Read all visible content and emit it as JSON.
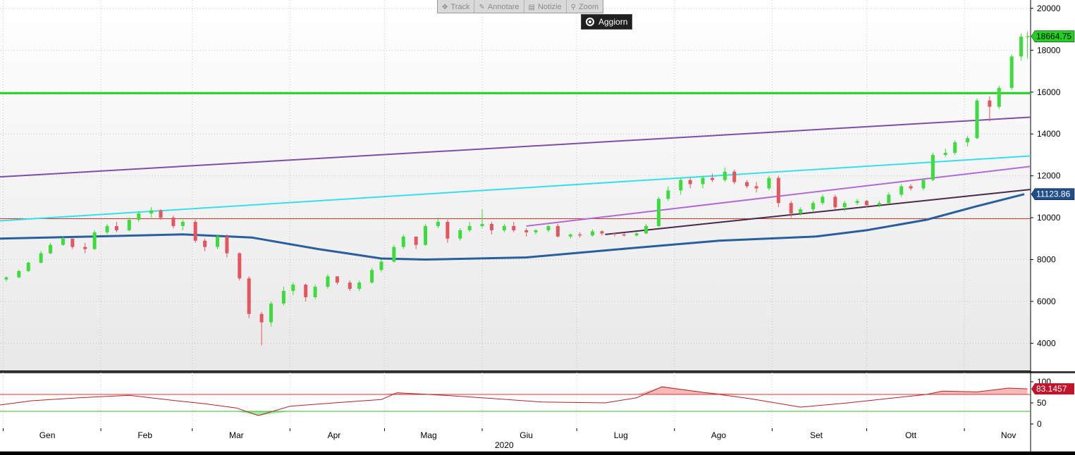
{
  "toolbar": {
    "items": [
      {
        "label": "Track",
        "icon": "crosshair-icon"
      },
      {
        "label": "Annotare",
        "icon": "pencil-icon"
      },
      {
        "label": "Notizie",
        "icon": "news-icon"
      },
      {
        "label": "Zoom",
        "icon": "magnifier-icon"
      }
    ],
    "refresh_label": "Aggiorn"
  },
  "chart_data": [
    {
      "type": "candlestick",
      "ylim": [
        2700,
        20400
      ],
      "yticks": [
        "4000",
        "6000",
        "8000",
        "10000",
        "12000",
        "14000",
        "16000",
        "18000",
        "20000"
      ],
      "last_price_label": "18664.75",
      "ma_label": "11123.86",
      "grid": true,
      "x_start": "2019-12-31",
      "x_end": "2020-11-22",
      "candles": [
        [
          "2020-01-02",
          7050,
          7200,
          6950,
          7150
        ],
        [
          "2020-01-06",
          7150,
          7500,
          7100,
          7450
        ],
        [
          "2020-01-09",
          7450,
          7900,
          7400,
          7850
        ],
        [
          "2020-01-13",
          7850,
          8400,
          7800,
          8300
        ],
        [
          "2020-01-16",
          8300,
          8800,
          8250,
          8700
        ],
        [
          "2020-01-20",
          8700,
          9100,
          8650,
          9000
        ],
        [
          "2020-01-23",
          9000,
          8950,
          8500,
          8600
        ],
        [
          "2020-01-27",
          8600,
          8800,
          8300,
          8500
        ],
        [
          "2020-01-30",
          8500,
          9400,
          8450,
          9300
        ],
        [
          "2020-02-03",
          9300,
          9700,
          9200,
          9600
        ],
        [
          "2020-02-06",
          9600,
          9800,
          9300,
          9400
        ],
        [
          "2020-02-10",
          9400,
          10000,
          9350,
          9900
        ],
        [
          "2020-02-13",
          9900,
          10300,
          9800,
          10200
        ],
        [
          "2020-02-17",
          10200,
          10500,
          10000,
          10350
        ],
        [
          "2020-02-20",
          10350,
          10400,
          9900,
          10000
        ],
        [
          "2020-02-24",
          10000,
          10100,
          9500,
          9600
        ],
        [
          "2020-02-27",
          9600,
          9900,
          9400,
          9800
        ],
        [
          "2020-03-02",
          9800,
          9900,
          8800,
          8900
        ],
        [
          "2020-03-05",
          8900,
          9000,
          8400,
          8600
        ],
        [
          "2020-03-09",
          8600,
          9200,
          8500,
          9100
        ],
        [
          "2020-03-12",
          9100,
          9200,
          8100,
          8300
        ],
        [
          "2020-03-16",
          8300,
          8350,
          7000,
          7100
        ],
        [
          "2020-03-19",
          7100,
          7200,
          5200,
          5400
        ],
        [
          "2020-03-23",
          5400,
          5500,
          3900,
          5000
        ],
        [
          "2020-03-26",
          5000,
          6000,
          4800,
          5900
        ],
        [
          "2020-03-30",
          5900,
          6700,
          5800,
          6500
        ],
        [
          "2020-04-02",
          6500,
          6900,
          6300,
          6800
        ],
        [
          "2020-04-06",
          6800,
          6850,
          6000,
          6200
        ],
        [
          "2020-04-09",
          6200,
          6800,
          6100,
          6700
        ],
        [
          "2020-04-13",
          6700,
          7300,
          6600,
          7200
        ],
        [
          "2020-04-16",
          7200,
          7100,
          6800,
          6900
        ],
        [
          "2020-04-20",
          6900,
          7000,
          6500,
          6600
        ],
        [
          "2020-04-23",
          6600,
          7000,
          6500,
          6900
        ],
        [
          "2020-04-27",
          6900,
          7600,
          6850,
          7500
        ],
        [
          "2020-04-30",
          7500,
          8000,
          7400,
          7900
        ],
        [
          "2020-05-04",
          7900,
          8700,
          7850,
          8600
        ],
        [
          "2020-05-07",
          8600,
          9200,
          8500,
          9100
        ],
        [
          "2020-05-11",
          9100,
          9000,
          8500,
          8700
        ],
        [
          "2020-05-14",
          8700,
          9700,
          8650,
          9600
        ],
        [
          "2020-05-18",
          9600,
          10000,
          9500,
          9800
        ],
        [
          "2020-05-21",
          9800,
          9900,
          8800,
          9000
        ],
        [
          "2020-05-25",
          9000,
          9500,
          8900,
          9400
        ],
        [
          "2020-05-28",
          9400,
          9800,
          9300,
          9600
        ],
        [
          "2020-06-01",
          9600,
          10400,
          9500,
          9700
        ],
        [
          "2020-06-04",
          9700,
          9800,
          9200,
          9400
        ],
        [
          "2020-06-08",
          9400,
          9700,
          9300,
          9600
        ],
        [
          "2020-06-11",
          9600,
          9800,
          9300,
          9400
        ],
        [
          "2020-06-15",
          9400,
          9500,
          9100,
          9300
        ],
        [
          "2020-06-18",
          9300,
          9450,
          9200,
          9400
        ],
        [
          "2020-06-22",
          9400,
          9650,
          9300,
          9600
        ],
        [
          "2020-06-25",
          9600,
          9700,
          9050,
          9100
        ],
        [
          "2020-06-29",
          9100,
          9250,
          9000,
          9200
        ],
        [
          "2020-07-02",
          9200,
          9300,
          9050,
          9150
        ],
        [
          "2020-07-06",
          9150,
          9450,
          9100,
          9350
        ],
        [
          "2020-07-09",
          9350,
          9400,
          9150,
          9250
        ],
        [
          "2020-07-13",
          9250,
          9300,
          9100,
          9200
        ],
        [
          "2020-07-16",
          9200,
          9250,
          9100,
          9150
        ],
        [
          "2020-07-20",
          9150,
          9300,
          9100,
          9250
        ],
        [
          "2020-07-23",
          9250,
          9700,
          9200,
          9600
        ],
        [
          "2020-07-27",
          9600,
          11000,
          9550,
          10900
        ],
        [
          "2020-07-30",
          10900,
          11500,
          10800,
          11300
        ],
        [
          "2020-08-03",
          11300,
          11900,
          11100,
          11800
        ],
        [
          "2020-08-06",
          11800,
          11900,
          11400,
          11600
        ],
        [
          "2020-08-10",
          11600,
          12000,
          11400,
          11900
        ],
        [
          "2020-08-13",
          11900,
          12100,
          11700,
          11800
        ],
        [
          "2020-08-17",
          11800,
          12400,
          11700,
          12200
        ],
        [
          "2020-08-20",
          12200,
          12300,
          11600,
          11700
        ],
        [
          "2020-08-24",
          11700,
          11800,
          11400,
          11500
        ],
        [
          "2020-08-27",
          11500,
          11700,
          11200,
          11400
        ],
        [
          "2020-08-31",
          11400,
          12000,
          11300,
          11900
        ],
        [
          "2020-09-03",
          11900,
          12000,
          10500,
          10700
        ],
        [
          "2020-09-07",
          10700,
          10800,
          10000,
          10200
        ],
        [
          "2020-09-10",
          10200,
          10500,
          10100,
          10400
        ],
        [
          "2020-09-14",
          10400,
          10800,
          10300,
          10700
        ],
        [
          "2020-09-17",
          10700,
          11100,
          10600,
          11000
        ],
        [
          "2020-09-21",
          11000,
          11100,
          10400,
          10500
        ],
        [
          "2020-09-24",
          10500,
          10800,
          10300,
          10700
        ],
        [
          "2020-09-28",
          10700,
          10900,
          10600,
          10800
        ],
        [
          "2020-10-01",
          10800,
          10850,
          10500,
          10600
        ],
        [
          "2020-10-05",
          10600,
          10800,
          10500,
          10700
        ],
        [
          "2020-10-08",
          10700,
          11200,
          10650,
          11100
        ],
        [
          "2020-10-12",
          11100,
          11600,
          11000,
          11500
        ],
        [
          "2020-10-15",
          11500,
          11600,
          11300,
          11400
        ],
        [
          "2020-10-19",
          11400,
          11900,
          11300,
          11800
        ],
        [
          "2020-10-22",
          11800,
          13100,
          11750,
          13000
        ],
        [
          "2020-10-26",
          13000,
          13300,
          12900,
          13100
        ],
        [
          "2020-10-29",
          13100,
          13700,
          13000,
          13600
        ],
        [
          "2020-11-02",
          13600,
          13900,
          13400,
          13800
        ],
        [
          "2020-11-05",
          13800,
          15700,
          13750,
          15600
        ],
        [
          "2020-11-09",
          15600,
          15800,
          14600,
          15300
        ],
        [
          "2020-11-12",
          15300,
          16300,
          15200,
          16200
        ],
        [
          "2020-11-16",
          16200,
          17800,
          16100,
          17700
        ],
        [
          "2020-11-19",
          17700,
          18800,
          17500,
          18650
        ],
        [
          "2020-11-21",
          18650,
          18900,
          17600,
          18664.75
        ]
      ],
      "moving_average": [
        [
          "2019-12-31",
          9000
        ],
        [
          "2020-01-30",
          9100
        ],
        [
          "2020-02-27",
          9200
        ],
        [
          "2020-03-20",
          9050
        ],
        [
          "2020-04-10",
          8500
        ],
        [
          "2020-04-30",
          8050
        ],
        [
          "2020-05-14",
          8000
        ],
        [
          "2020-06-15",
          8100
        ],
        [
          "2020-07-15",
          8500
        ],
        [
          "2020-08-15",
          8900
        ],
        [
          "2020-09-15",
          9100
        ],
        [
          "2020-10-01",
          9400
        ],
        [
          "2020-10-20",
          9900
        ],
        [
          "2020-11-05",
          10550
        ],
        [
          "2020-11-20",
          11123.86
        ]
      ],
      "reference_lines": [
        {
          "name": "green-horizontal",
          "y": 15950,
          "color": "#21d021"
        },
        {
          "name": "red-horizontal",
          "y": 9950,
          "color": "#c0392b"
        }
      ],
      "trend_lines": [
        {
          "name": "purple-upper",
          "from": [
            "2019-12-31",
            11950
          ],
          "to": [
            "2020-11-22",
            14800
          ],
          "color": "#7f4fa6"
        },
        {
          "name": "cyan",
          "from": [
            "2019-12-31",
            9850
          ],
          "to": [
            "2020-11-22",
            12950
          ],
          "color": "#35e0ea"
        },
        {
          "name": "magenta",
          "from": [
            "2020-06-15",
            9600
          ],
          "to": [
            "2020-11-22",
            12450
          ],
          "color": "#b36ad6"
        },
        {
          "name": "dark-purple",
          "from": [
            "2020-07-10",
            9200
          ],
          "to": [
            "2020-11-22",
            11350
          ],
          "color": "#4a2a4a"
        }
      ]
    },
    {
      "type": "line",
      "name": "rsi",
      "ylim": [
        -10,
        115
      ],
      "yticks": [
        "0",
        "50",
        "100"
      ],
      "overbought": 70,
      "oversold": 30,
      "last_value_label": "83.1457",
      "values": [
        [
          "2019-12-31",
          45
        ],
        [
          "2020-01-10",
          55
        ],
        [
          "2020-01-25",
          62
        ],
        [
          "2020-02-10",
          68
        ],
        [
          "2020-02-25",
          55
        ],
        [
          "2020-03-05",
          48
        ],
        [
          "2020-03-15",
          38
        ],
        [
          "2020-03-22",
          20
        ],
        [
          "2020-04-01",
          42
        ],
        [
          "2020-04-15",
          50
        ],
        [
          "2020-04-30",
          58
        ],
        [
          "2020-05-05",
          74
        ],
        [
          "2020-05-20",
          68
        ],
        [
          "2020-06-05",
          60
        ],
        [
          "2020-06-20",
          52
        ],
        [
          "2020-07-10",
          50
        ],
        [
          "2020-07-20",
          62
        ],
        [
          "2020-07-28",
          88
        ],
        [
          "2020-08-10",
          75
        ],
        [
          "2020-08-25",
          60
        ],
        [
          "2020-09-10",
          40
        ],
        [
          "2020-09-25",
          50
        ],
        [
          "2020-10-10",
          62
        ],
        [
          "2020-10-20",
          70
        ],
        [
          "2020-10-25",
          78
        ],
        [
          "2020-11-05",
          76
        ],
        [
          "2020-11-15",
          85
        ],
        [
          "2020-11-21",
          83.1457
        ]
      ]
    }
  ],
  "x_axis": {
    "months": [
      {
        "label": "Gen",
        "date": "2020-01-15"
      },
      {
        "label": "Feb",
        "date": "2020-02-15"
      },
      {
        "label": "Mar",
        "date": "2020-03-15"
      },
      {
        "label": "Apr",
        "date": "2020-04-15"
      },
      {
        "label": "Mag",
        "date": "2020-05-15"
      },
      {
        "label": "Giu",
        "date": "2020-06-15"
      },
      {
        "label": "Lug",
        "date": "2020-07-15"
      },
      {
        "label": "Ago",
        "date": "2020-08-15"
      },
      {
        "label": "Set",
        "date": "2020-09-15"
      },
      {
        "label": "Ott",
        "date": "2020-10-15"
      },
      {
        "label": "Nov",
        "date": "2020-11-15"
      }
    ],
    "year": "2020"
  },
  "colors": {
    "up": "#3ddc3d",
    "down": "#e3565f",
    "ma": "#2a5f9e",
    "rsi": "#b22222",
    "last_price_bg": "#21d021",
    "ma_label_bg": "#1f4e8c",
    "rsi_label_bg": "#c0142a"
  }
}
